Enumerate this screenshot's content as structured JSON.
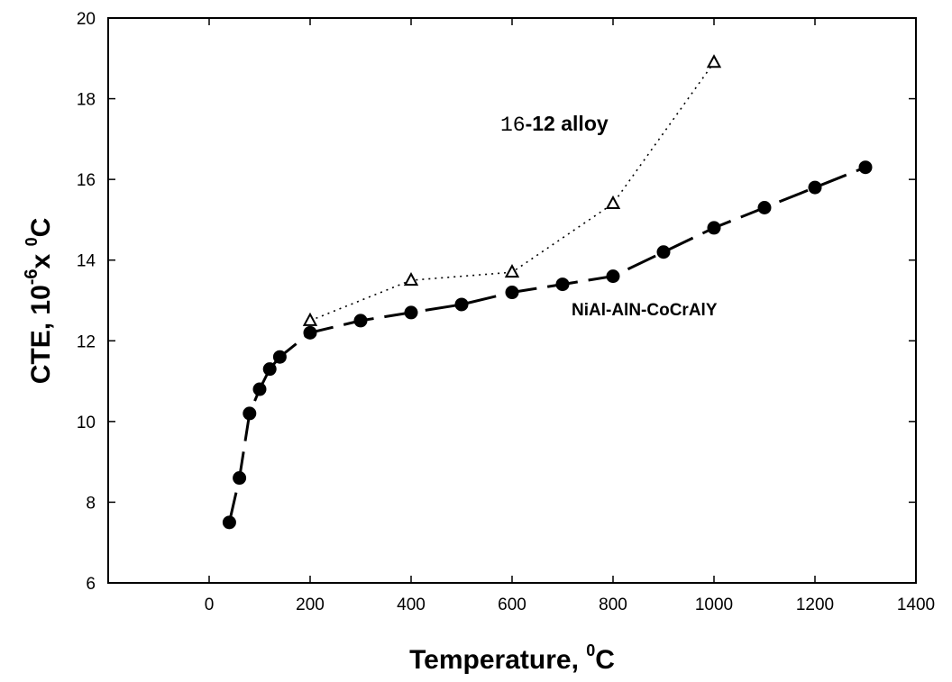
{
  "chart_data": {
    "type": "line",
    "xlabel": "Temperature, ",
    "xlabel_sup": "0",
    "xlabel_tail": "C",
    "ylabel_main": "CTE, 10",
    "ylabel_sup": "-6",
    "ylabel_x": "x ",
    "ylabel_sup2": "0",
    "ylabel_tail": "C",
    "xlim": [
      -200,
      1400
    ],
    "ylim": [
      6,
      20
    ],
    "x_ticks": [
      0,
      200,
      400,
      600,
      800,
      1000,
      1200,
      1400
    ],
    "y_ticks": [
      6,
      8,
      10,
      12,
      14,
      16,
      18,
      20
    ],
    "x_tick_labels": [
      "0",
      "200",
      "400",
      "600",
      "800",
      "1000",
      "1200",
      "1400"
    ],
    "y_tick_labels": [
      "6",
      "8",
      "10",
      "12",
      "14",
      "16",
      "18",
      "20"
    ],
    "grid": false,
    "series": [
      {
        "name": "NiAl-AlN-CoCrAlY",
        "marker": "filled-circle",
        "line": "dashed",
        "x": [
          40,
          60,
          80,
          100,
          120,
          140,
          200,
          300,
          400,
          500,
          600,
          700,
          800,
          900,
          1000,
          1100,
          1200,
          1300
        ],
        "y": [
          7.5,
          8.6,
          10.2,
          10.8,
          11.3,
          11.6,
          12.2,
          12.5,
          12.7,
          12.9,
          13.2,
          13.4,
          13.6,
          14.2,
          14.8,
          15.3,
          15.8,
          16.3
        ]
      },
      {
        "name": "16-12 alloy",
        "marker": "open-triangle",
        "line": "dotted",
        "x": [
          200,
          400,
          600,
          800,
          1000
        ],
        "y": [
          12.5,
          13.5,
          13.7,
          15.4,
          18.9
        ]
      }
    ],
    "annotations": {
      "alloy_prefix": "16",
      "alloy_suffix": "-12 alloy",
      "nial_label": "NiAl-AlN-CoCrAlY"
    },
    "colors": {
      "ink": "#000000",
      "background": "#ffffff"
    }
  }
}
